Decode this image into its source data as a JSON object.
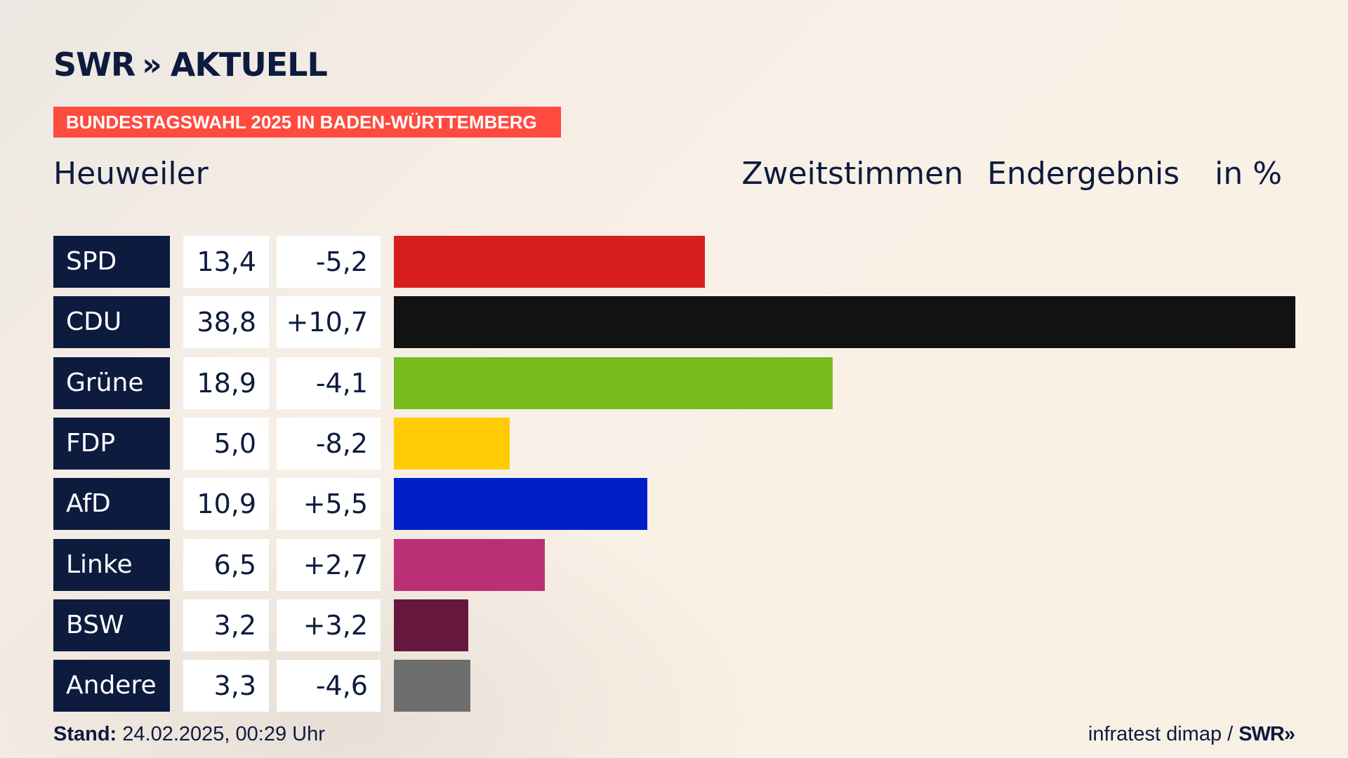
{
  "brand": {
    "name": "SWR",
    "chevrons": "»",
    "section": "AKTUELL"
  },
  "banner": "BUNDESTAGSWAHL 2025 IN BADEN-WÜRTTEMBERG",
  "place": "Heuweiler",
  "header": {
    "vote_type": "Zweitstimmen",
    "status": "Endergebnis",
    "unit": "in %"
  },
  "colors": {
    "SPD": "#d81f1f",
    "CDU": "#121212",
    "Grüne": "#79bb1d",
    "FDP": "#ffcc05",
    "AfD": "#001fc9",
    "Linke": "#bb3074",
    "BSW": "#66173d",
    "Andere": "#6e6e6e"
  },
  "chart_data": {
    "type": "bar",
    "orientation": "horizontal",
    "categories": [
      "SPD",
      "CDU",
      "Grüne",
      "FDP",
      "AfD",
      "Linke",
      "BSW",
      "Andere"
    ],
    "values": [
      13.4,
      38.8,
      18.9,
      5.0,
      10.9,
      6.5,
      3.2,
      3.3
    ],
    "value_labels": [
      "13,4",
      "38,8",
      "18,9",
      "5,0",
      "10,9",
      "6,5",
      "3,2",
      "3,3"
    ],
    "diff_labels": [
      "-5,2",
      "+10,7",
      "-4,1",
      "-8,2",
      "+5,5",
      "+2,7",
      "+3,2",
      "-4,6"
    ],
    "diffs": [
      -5.2,
      10.7,
      -4.1,
      -8.2,
      5.5,
      2.7,
      3.2,
      -4.6
    ],
    "xlim": [
      0,
      38.8
    ],
    "grid": false,
    "legend": "none"
  },
  "footer": {
    "stand_label": "Stand:",
    "stand_value": "24.02.2025, 00:29 Uhr",
    "source": "infratest dimap /",
    "source_brand": "SWR»"
  }
}
